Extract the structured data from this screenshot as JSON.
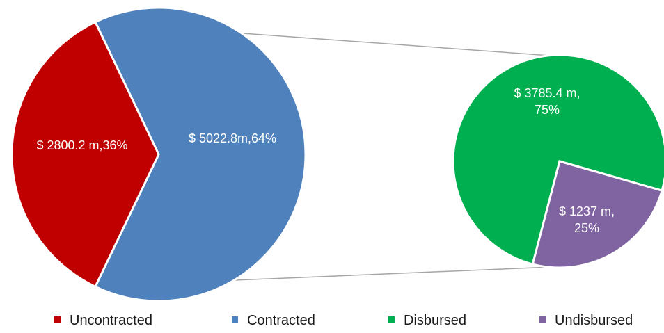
{
  "chart_data": {
    "type": "pie",
    "title": "",
    "main_pie": {
      "slices": [
        {
          "name": "Uncontracted",
          "value": 2800.2,
          "percent": 36,
          "color": "#C00000",
          "label": "$ 2800.2 m,36%"
        },
        {
          "name": "Contracted",
          "value": 5022.8,
          "percent": 64,
          "color": "#4F81BD",
          "label": "$ 5022.8m,64%"
        }
      ]
    },
    "sub_pie": {
      "breakdown_of": "Contracted",
      "slices": [
        {
          "name": "Disbursed",
          "value": 3785.4,
          "percent": 75,
          "color": "#00B050",
          "label_lines": [
            "$ 3785.4 m,",
            "75%"
          ]
        },
        {
          "name": "Undisbursed",
          "value": 1237,
          "percent": 25,
          "color": "#8064A2",
          "label_lines": [
            "$ 1237 m,",
            "25%"
          ]
        }
      ]
    },
    "legend": {
      "placement": "bottom",
      "entries": [
        {
          "name": "Uncontracted",
          "color": "#C00000"
        },
        {
          "name": "Contracted",
          "color": "#4F81BD"
        },
        {
          "name": "Disbursed",
          "color": "#00B050"
        },
        {
          "name": "Undisbursed",
          "color": "#8064A2"
        }
      ]
    }
  }
}
